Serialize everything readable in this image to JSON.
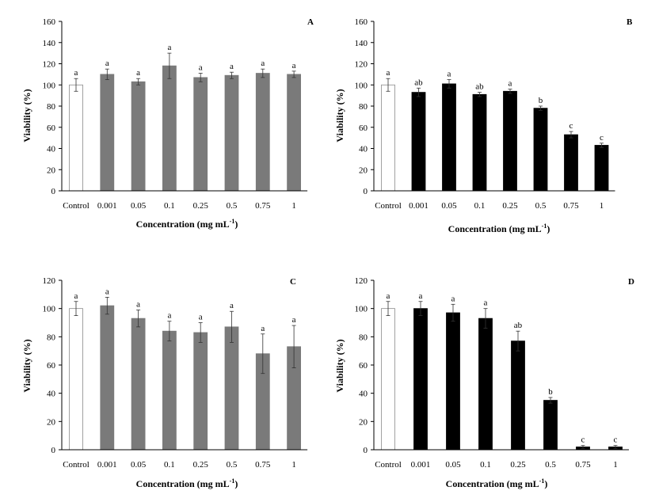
{
  "chart_data": [
    {
      "panel": "A",
      "type": "bar",
      "categories": [
        "Control",
        "0.001",
        "0.05",
        "0.1",
        "0.25",
        "0.5",
        "0.75",
        "1"
      ],
      "values": [
        100,
        110,
        103,
        118,
        107,
        109,
        111,
        110
      ],
      "errors": [
        6,
        5,
        3,
        12,
        4,
        3,
        4,
        3
      ],
      "letters": [
        "a",
        "a",
        "a",
        "a",
        "a",
        "a",
        "a",
        "a"
      ],
      "colors": [
        "#ffffff",
        "#7a7a7a",
        "#7a7a7a",
        "#7a7a7a",
        "#7a7a7a",
        "#7a7a7a",
        "#7a7a7a",
        "#7a7a7a"
      ],
      "ylim": [
        0,
        160
      ],
      "yticks": [
        0,
        20,
        40,
        60,
        80,
        100,
        120,
        140,
        160
      ],
      "ylabel": "Viability (%)",
      "xlabel": "Concentration  (mg mL",
      "xlabel_sup": "-1",
      "xlabel_end": ")"
    },
    {
      "panel": "B",
      "type": "bar",
      "categories": [
        "Control",
        "0.001",
        "0.05",
        "0.1",
        "0.25",
        "0.5",
        "0.75",
        "1"
      ],
      "values": [
        100,
        93,
        101,
        91,
        94,
        78,
        53,
        43
      ],
      "errors": [
        6,
        4,
        4,
        2,
        2,
        2,
        3,
        2
      ],
      "letters": [
        "a",
        "ab",
        "a",
        "ab",
        "a",
        "b",
        "c",
        "c"
      ],
      "colors": [
        "#ffffff",
        "#000000",
        "#000000",
        "#000000",
        "#000000",
        "#000000",
        "#000000",
        "#000000"
      ],
      "ylim": [
        0,
        160
      ],
      "yticks": [
        0,
        20,
        40,
        60,
        80,
        100,
        120,
        140,
        160
      ],
      "ylabel": "Viability (%)",
      "xlabel": "Concentration (mg mL",
      "xlabel_sup": "-1",
      "xlabel_end": ")"
    },
    {
      "panel": "C",
      "type": "bar",
      "categories": [
        "Control",
        "0.001",
        "0.05",
        "0.1",
        "0.25",
        "0.5",
        "0.75",
        "1"
      ],
      "values": [
        100,
        102,
        93,
        84,
        83,
        87,
        68,
        73
      ],
      "errors": [
        5,
        6,
        6,
        7,
        7,
        11,
        14,
        15
      ],
      "letters": [
        "a",
        "a",
        "a",
        "a",
        "a",
        "a",
        "a",
        "a"
      ],
      "colors": [
        "#ffffff",
        "#7a7a7a",
        "#7a7a7a",
        "#7a7a7a",
        "#7a7a7a",
        "#7a7a7a",
        "#7a7a7a",
        "#7a7a7a"
      ],
      "ylim": [
        0,
        120
      ],
      "yticks": [
        0,
        20,
        40,
        60,
        80,
        100,
        120
      ],
      "ylabel": "Viability (%)",
      "xlabel": "Concentration (mg mL",
      "xlabel_sup": "-1",
      "xlabel_end": ")"
    },
    {
      "panel": "D",
      "type": "bar",
      "categories": [
        "Control",
        "0.001",
        "0.05",
        "0.1",
        "0.25",
        "0.5",
        "0.75",
        "1"
      ],
      "values": [
        100,
        100,
        97,
        93,
        77,
        35,
        2,
        2
      ],
      "errors": [
        5,
        5,
        6,
        7,
        7,
        2,
        1,
        1
      ],
      "letters": [
        "a",
        "a",
        "a",
        "a",
        "ab",
        "b",
        "c",
        "c"
      ],
      "colors": [
        "#ffffff",
        "#000000",
        "#000000",
        "#000000",
        "#000000",
        "#000000",
        "#000000",
        "#000000"
      ],
      "ylim": [
        0,
        120
      ],
      "yticks": [
        0,
        20,
        40,
        60,
        80,
        100,
        120
      ],
      "ylabel": "Viability (%)",
      "xlabel": "Concentration (mg mL",
      "xlabel_sup": "-1",
      "xlabel_end": ")"
    }
  ]
}
